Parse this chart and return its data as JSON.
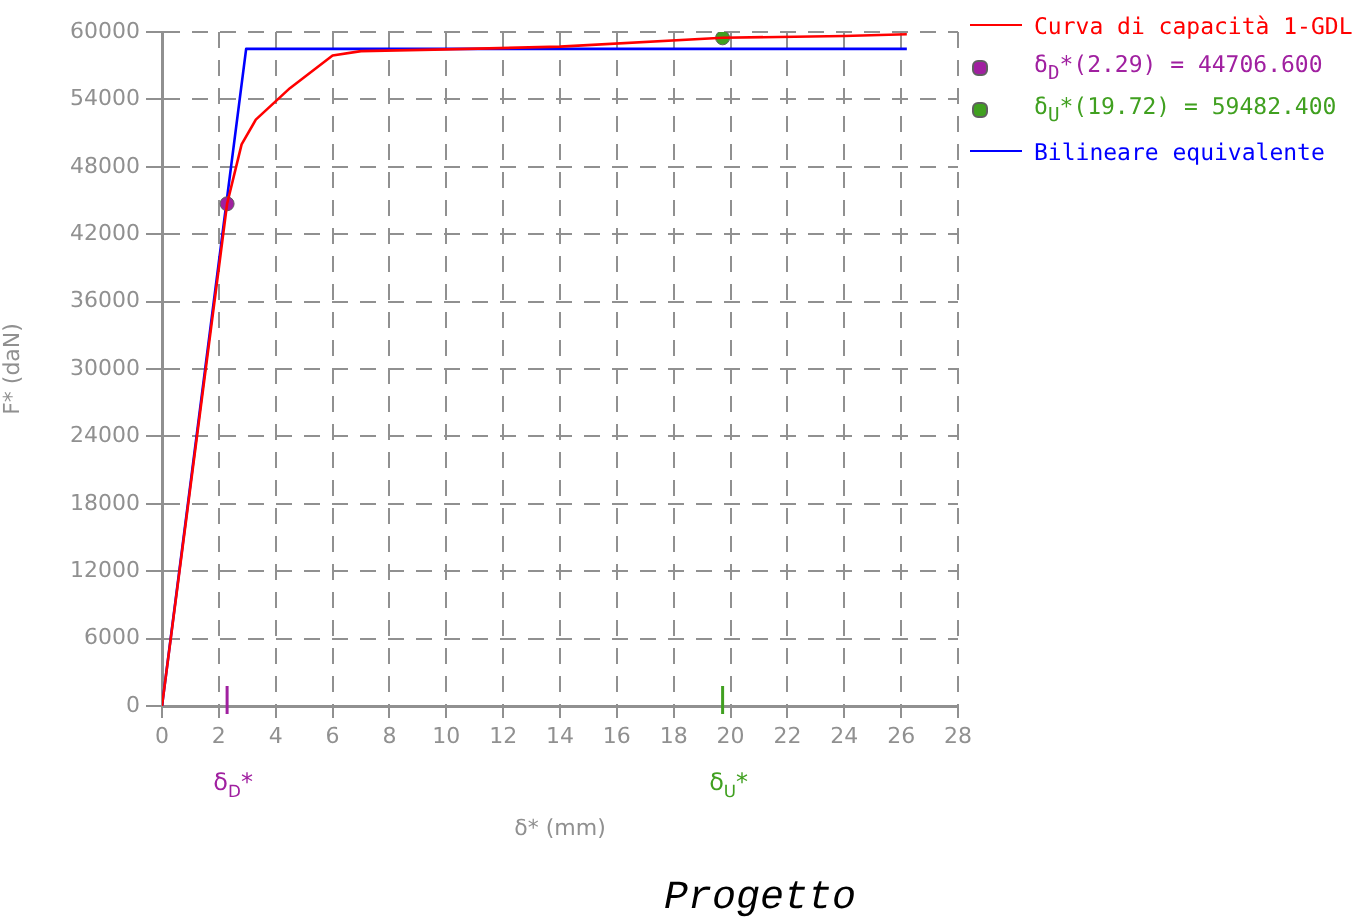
{
  "chart_data": {
    "type": "line",
    "xlabel": "δ* (mm)",
    "ylabel": "F* (daN)",
    "annotations": [
      "Progetto",
      "δ$_{D}$*",
      "δ$_{U}$*"
    ],
    "series": [
      {
        "name": "Curva di capacità 1-GDL",
        "color": "#ff0000",
        "type": "line",
        "marker": "none",
        "x": [
          0,
          1,
          2,
          2.29,
          2.8,
          3.3,
          4.5,
          6,
          7,
          10,
          14,
          19.72,
          24,
          26.2
        ],
        "values": [
          0,
          19500,
          39000,
          44706.6,
          50000,
          52200,
          55000,
          57900,
          58300,
          58450,
          58700,
          59482.4,
          59650,
          59800
        ]
      },
      {
        "name": "δ$_{D}$*(2.29) = 44706.600",
        "color": "#a020a0",
        "type": "scatter",
        "marker": "circle",
        "x": [
          2.29
        ],
        "values": [
          44706.6
        ]
      },
      {
        "name": "δ$_{U}$*(19.72) = 59482.400",
        "color": "#40a020",
        "type": "scatter",
        "marker": "circle",
        "x": [
          19.72
        ],
        "values": [
          59482.4
        ]
      },
      {
        "name": "Bilineare equivalente",
        "color": "#0000ff",
        "type": "line",
        "marker": "none",
        "x": [
          0,
          2.96,
          26.2
        ],
        "values": [
          0,
          58500,
          58500
        ]
      }
    ],
    "xlim": [
      0,
      28
    ],
    "xticks": [
      0,
      2,
      4,
      6,
      8,
      10,
      12,
      14,
      16,
      18,
      20,
      22,
      24,
      26,
      28
    ],
    "ylim": [
      0,
      60000
    ],
    "yticks": [
      0,
      6000,
      12000,
      18000,
      24000,
      30000,
      36000,
      42000,
      48000,
      54000,
      60000
    ],
    "grid": true,
    "legend": "top right"
  }
}
